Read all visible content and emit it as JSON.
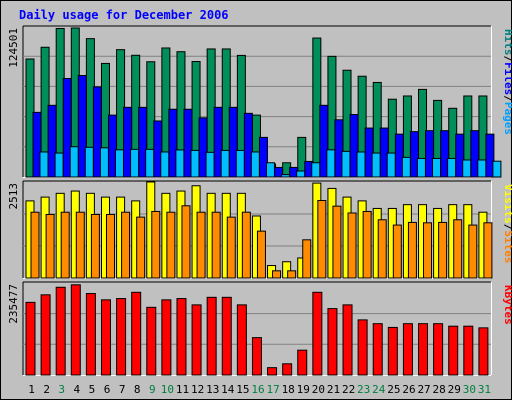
{
  "chart_data": [
    {
      "type": "bar",
      "title": "Daily usage for December 2006",
      "panel": "hits-files-pages",
      "ylabel_max": "124501",
      "ylim": [
        0,
        124501
      ],
      "categories": [
        "1",
        "2",
        "3",
        "4",
        "5",
        "6",
        "7",
        "8",
        "9",
        "10",
        "11",
        "12",
        "13",
        "14",
        "15",
        "16",
        "17",
        "18",
        "19",
        "20",
        "21",
        "22",
        "23",
        "24",
        "25",
        "26",
        "27",
        "28",
        "29",
        "30",
        "31"
      ],
      "category_colors": [
        "#000000",
        "#000000",
        "#008040",
        "#000000",
        "#000000",
        "#000000",
        "#000000",
        "#000000",
        "#008040",
        "#008040",
        "#000000",
        "#000000",
        "#000000",
        "#000000",
        "#000000",
        "#008040",
        "#008040",
        "#000000",
        "#000000",
        "#000000",
        "#000000",
        "#000000",
        "#008040",
        "#008040",
        "#000000",
        "#000000",
        "#000000",
        "#000000",
        "#000000",
        "#008040",
        "#008040"
      ],
      "legend": [
        {
          "label": "Pages",
          "color": "#00A0FF"
        },
        {
          "label": "/",
          "color": "#000000"
        },
        {
          "label": "Files",
          "color": "#0000FF"
        },
        {
          "label": "/",
          "color": "#000000"
        },
        {
          "label": "Hits",
          "color": "#008080"
        }
      ],
      "series": [
        {
          "name": "Hits",
          "color": "#008F5A",
          "values": [
            98600,
            108400,
            124100,
            124501,
            115600,
            94900,
            106400,
            101700,
            96300,
            107800,
            104700,
            96500,
            107000,
            107000,
            101600,
            51700,
            10900,
            11900,
            33100,
            116100,
            100800,
            89200,
            84200,
            79000,
            65000,
            67700,
            73200,
            64000,
            57400,
            67700,
            67700
          ]
        },
        {
          "name": "Files",
          "color": "#0000FF",
          "values": [
            54000,
            59900,
            82300,
            84800,
            75300,
            51700,
            58200,
            58200,
            46800,
            56600,
            56600,
            49400,
            58200,
            58200,
            53200,
            33100,
            8000,
            8000,
            13000,
            59900,
            47800,
            52200,
            40900,
            40900,
            35800,
            37900,
            38700,
            38700,
            35800,
            38700,
            35800
          ]
        },
        {
          "name": "Pages",
          "color": "#00BFFF",
          "values": [
            20900,
            20000,
            25300,
            24800,
            24400,
            22700,
            23100,
            23100,
            20900,
            22600,
            22200,
            20600,
            22200,
            22200,
            20900,
            11900,
            2000,
            5000,
            11900,
            22700,
            21400,
            20900,
            20000,
            20000,
            16400,
            15500,
            15500,
            15500,
            14200,
            14200,
            13200
          ]
        }
      ]
    },
    {
      "type": "bar",
      "panel": "visits-sites",
      "ylabel_max": "2513",
      "ylim": [
        0,
        2513
      ],
      "legend": [
        {
          "label": "Sites",
          "color": "#FF8000"
        },
        {
          "label": "/",
          "color": "#000000"
        },
        {
          "label": "Visits",
          "color": "#FFFF00"
        }
      ],
      "series": [
        {
          "name": "Visits",
          "color": "#FFFF00",
          "values": [
            2040,
            2140,
            2240,
            2300,
            2240,
            2140,
            2140,
            2040,
            2540,
            2240,
            2300,
            2440,
            2240,
            2240,
            2240,
            1640,
            330,
            430,
            530,
            2510,
            2370,
            2140,
            2040,
            1840,
            1840,
            1940,
            1940,
            1840,
            1940,
            1940,
            1740
          ]
        },
        {
          "name": "Sites",
          "color": "#FF8C00",
          "values": [
            1740,
            1680,
            1740,
            1740,
            1680,
            1680,
            1740,
            1610,
            1760,
            1740,
            1910,
            1740,
            1740,
            1610,
            1740,
            1240,
            190,
            190,
            1010,
            2050,
            1900,
            1720,
            1760,
            1540,
            1400,
            1470,
            1460,
            1470,
            1540,
            1400,
            1460
          ]
        }
      ]
    },
    {
      "type": "bar",
      "panel": "kbytes",
      "ylabel_max": "235477",
      "ylim": [
        0,
        235477
      ],
      "legend": [
        {
          "label": "KBytes",
          "color": "#FF0000"
        }
      ],
      "series": [
        {
          "name": "KBytes",
          "color": "#FF0000",
          "values": [
            188000,
            207500,
            227000,
            233400,
            210800,
            194500,
            197800,
            214000,
            175100,
            194500,
            197800,
            181500,
            201000,
            201000,
            181500,
            96700,
            19000,
            29000,
            64200,
            214000,
            171800,
            181500,
            142600,
            132800,
            123100,
            132800,
            132800,
            132800,
            126300,
            126300,
            122000
          ]
        }
      ]
    }
  ]
}
